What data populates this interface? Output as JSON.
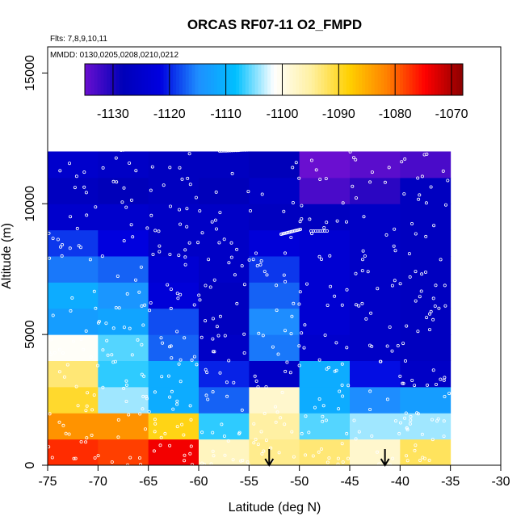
{
  "chart_data": {
    "type": "heatmap",
    "title": "ORCAS RF07-11 O2_FMPD",
    "subtitle_flights": "Flts: 7,8,9,10,11",
    "subtitle_dates": "MMDD: 0130,0205,0208,0210,0212",
    "xlabel": "Latitude (deg N)",
    "ylabel": "Altitude (m)",
    "xlim": [
      -75,
      -30
    ],
    "ylim": [
      0,
      16000
    ],
    "x_ticks": [
      -75,
      -70,
      -65,
      -60,
      -55,
      -50,
      -45,
      -40,
      -35,
      -30
    ],
    "y_ticks": [
      0,
      5000,
      10000,
      15000
    ],
    "x_tick_labels": [
      "-75",
      "-70",
      "-65",
      "-60",
      "-55",
      "-50",
      "-45",
      "-40",
      "-35",
      "-30"
    ],
    "y_tick_labels": [
      "0",
      "5000",
      "10000",
      "15000"
    ],
    "x_edges": [
      -75,
      -70,
      -65,
      -60,
      -55,
      -50,
      -45,
      -40,
      -35
    ],
    "y_edges": [
      0,
      1000,
      2000,
      3000,
      4000,
      5000,
      6000,
      7000,
      8000,
      9000,
      10000,
      11000,
      12000
    ],
    "values": [
      [
        -1077,
        -1078,
        -1074,
        -1097,
        -1094,
        -1093,
        -1098,
        -1092
      ],
      [
        -1083,
        -1083,
        -1089,
        -1107,
        -1095,
        -1106,
        -1104,
        -1104
      ],
      [
        -1090,
        -1104,
        -1111,
        -1117,
        -1098,
        -1111,
        -1115,
        -1113
      ],
      [
        -1093,
        -1107,
        -1111,
        -1120,
        -1126,
        -1111,
        -1121,
        -1126
      ],
      [
        -1101,
        -1106,
        -1117,
        -1126,
        -1116,
        -1125,
        -1126,
        -1127
      ],
      [
        -1113,
        -1112,
        -1118,
        -1127,
        -1115,
        -1124,
        -1126,
        -1127
      ],
      [
        -1111,
        -1114,
        -1123,
        -1127,
        -1117,
        -1124,
        -1126,
        -1127
      ],
      [
        -1116,
        -1117,
        -1124,
        -1126,
        -1119,
        -1124,
        -1126,
        -1127
      ],
      [
        -1119,
        -1122,
        -1126,
        -1126,
        -1123,
        -1124,
        -1126,
        -1127
      ],
      [
        -1125,
        -1125,
        -1126,
        -1126,
        -1127,
        -1127,
        -1126,
        -1127
      ],
      [
        -1127,
        -1128,
        -1127,
        -1128,
        -1126,
        -1133,
        -1131,
        -1127
      ],
      [
        -1125,
        -1126,
        -1127,
        -1127,
        -1128,
        -1135,
        -1134,
        -1133
      ]
    ],
    "colorbar": {
      "range": [
        -1135,
        -1068
      ],
      "ticks": [
        -1130,
        -1120,
        -1110,
        -1100,
        -1090,
        -1080,
        -1070
      ],
      "tick_labels": [
        "-1130",
        "-1120",
        "-1110",
        "-1100",
        "-1090",
        "-1080",
        "-1070"
      ],
      "colors": [
        "#6a0fd0",
        "#0000b8",
        "#0000e0",
        "#1e8fff",
        "#00c0ff",
        "#ffffff",
        "#fff0a0",
        "#ffd000",
        "#ff8000",
        "#ff0000",
        "#8b0000"
      ]
    },
    "arrows_at_latitude": [
      -53,
      -41.5
    ],
    "legend": "colorbar at top inside plot area"
  }
}
